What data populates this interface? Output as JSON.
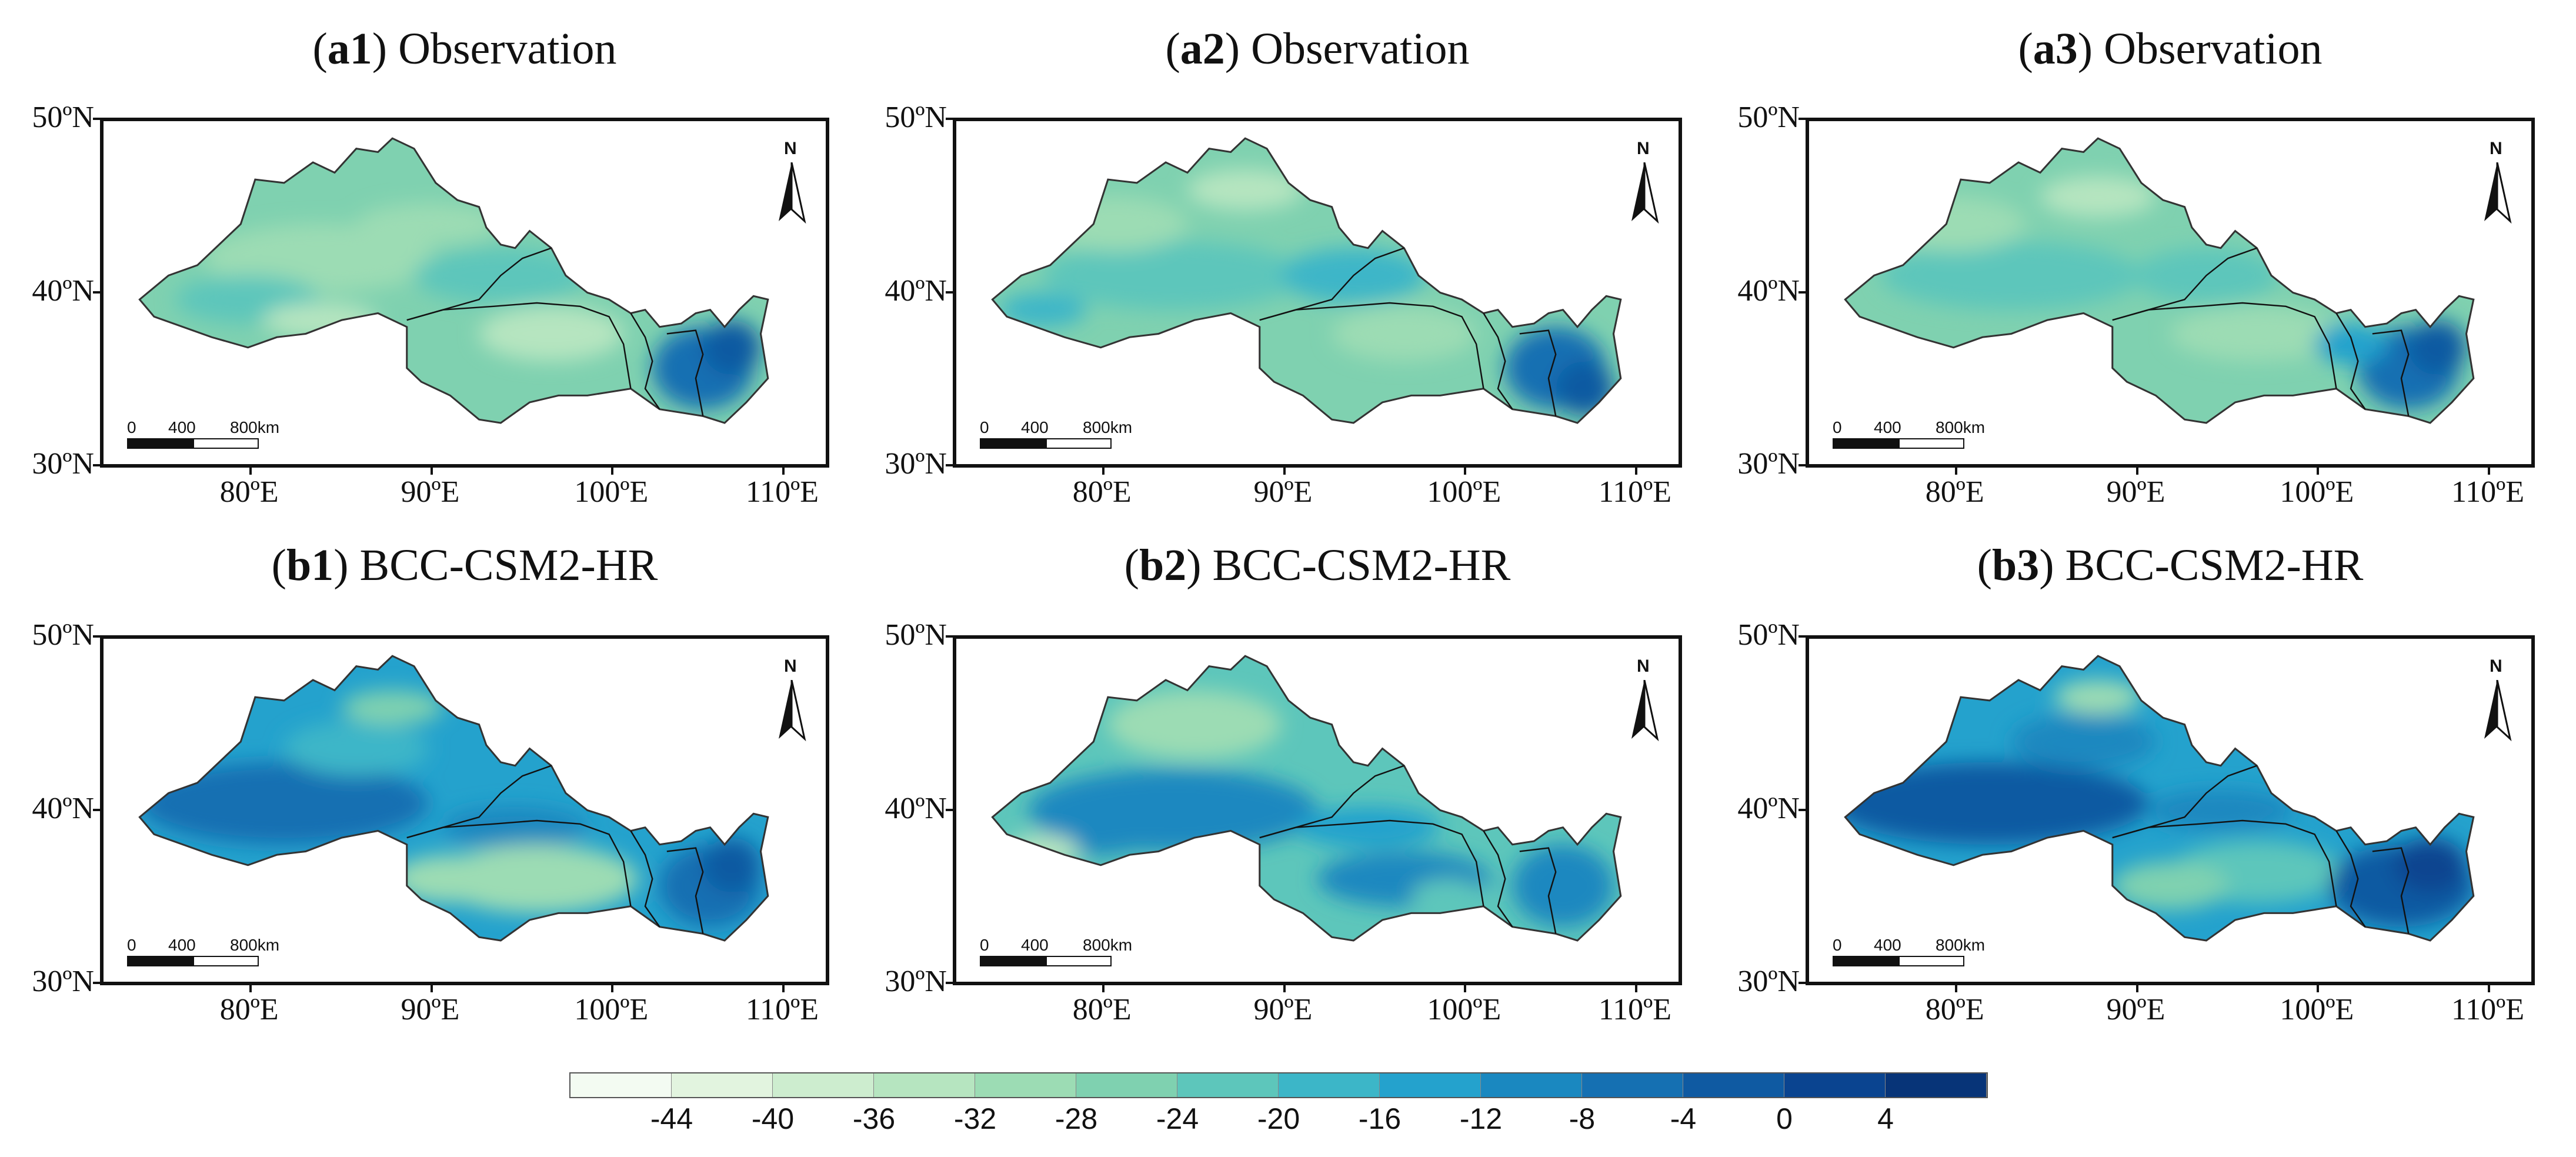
{
  "panels": [
    {
      "id": "a1",
      "prefix": "(",
      "bold": "a1",
      "suffix": ") Observation",
      "variant": "obs1"
    },
    {
      "id": "a2",
      "prefix": "(",
      "bold": "a2",
      "suffix": ") Observation",
      "variant": "obs2"
    },
    {
      "id": "a3",
      "prefix": "(",
      "bold": "a3",
      "suffix": ") Observation",
      "variant": "obs3"
    },
    {
      "id": "b1",
      "prefix": "(",
      "bold": "b1",
      "suffix": ") BCC-CSM2-HR",
      "variant": "mod1"
    },
    {
      "id": "b2",
      "prefix": "(",
      "bold": "b2",
      "suffix": ") BCC-CSM2-HR",
      "variant": "mod2"
    },
    {
      "id": "b3",
      "prefix": "(",
      "bold": "b3",
      "suffix": ") BCC-CSM2-HR",
      "variant": "mod3"
    }
  ],
  "y_ticks": [
    "50ºN",
    "40ºN",
    "30ºN"
  ],
  "x_ticks": [
    "80ºE",
    "90ºE",
    "100ºE",
    "110ºE"
  ],
  "scale_bar": {
    "labels": [
      "0",
      "400",
      "800km"
    ]
  },
  "north_arrow": {
    "label": "N"
  },
  "colorbar": {
    "labels": [
      "-44",
      "-40",
      "-36",
      "-32",
      "-28",
      "-24",
      "-20",
      "-16",
      "-12",
      "-8",
      "-4",
      "0",
      "4"
    ],
    "colors": [
      "#f3fbf2",
      "#e2f4df",
      "#cdedcf",
      "#b6e5c0",
      "#9cdcb4",
      "#7fd1b0",
      "#5dc6bb",
      "#3cb6c8",
      "#24a2cd",
      "#1a88c0",
      "#1570b2",
      "#0f5aa2",
      "#0a4490",
      "#073478"
    ]
  }
}
